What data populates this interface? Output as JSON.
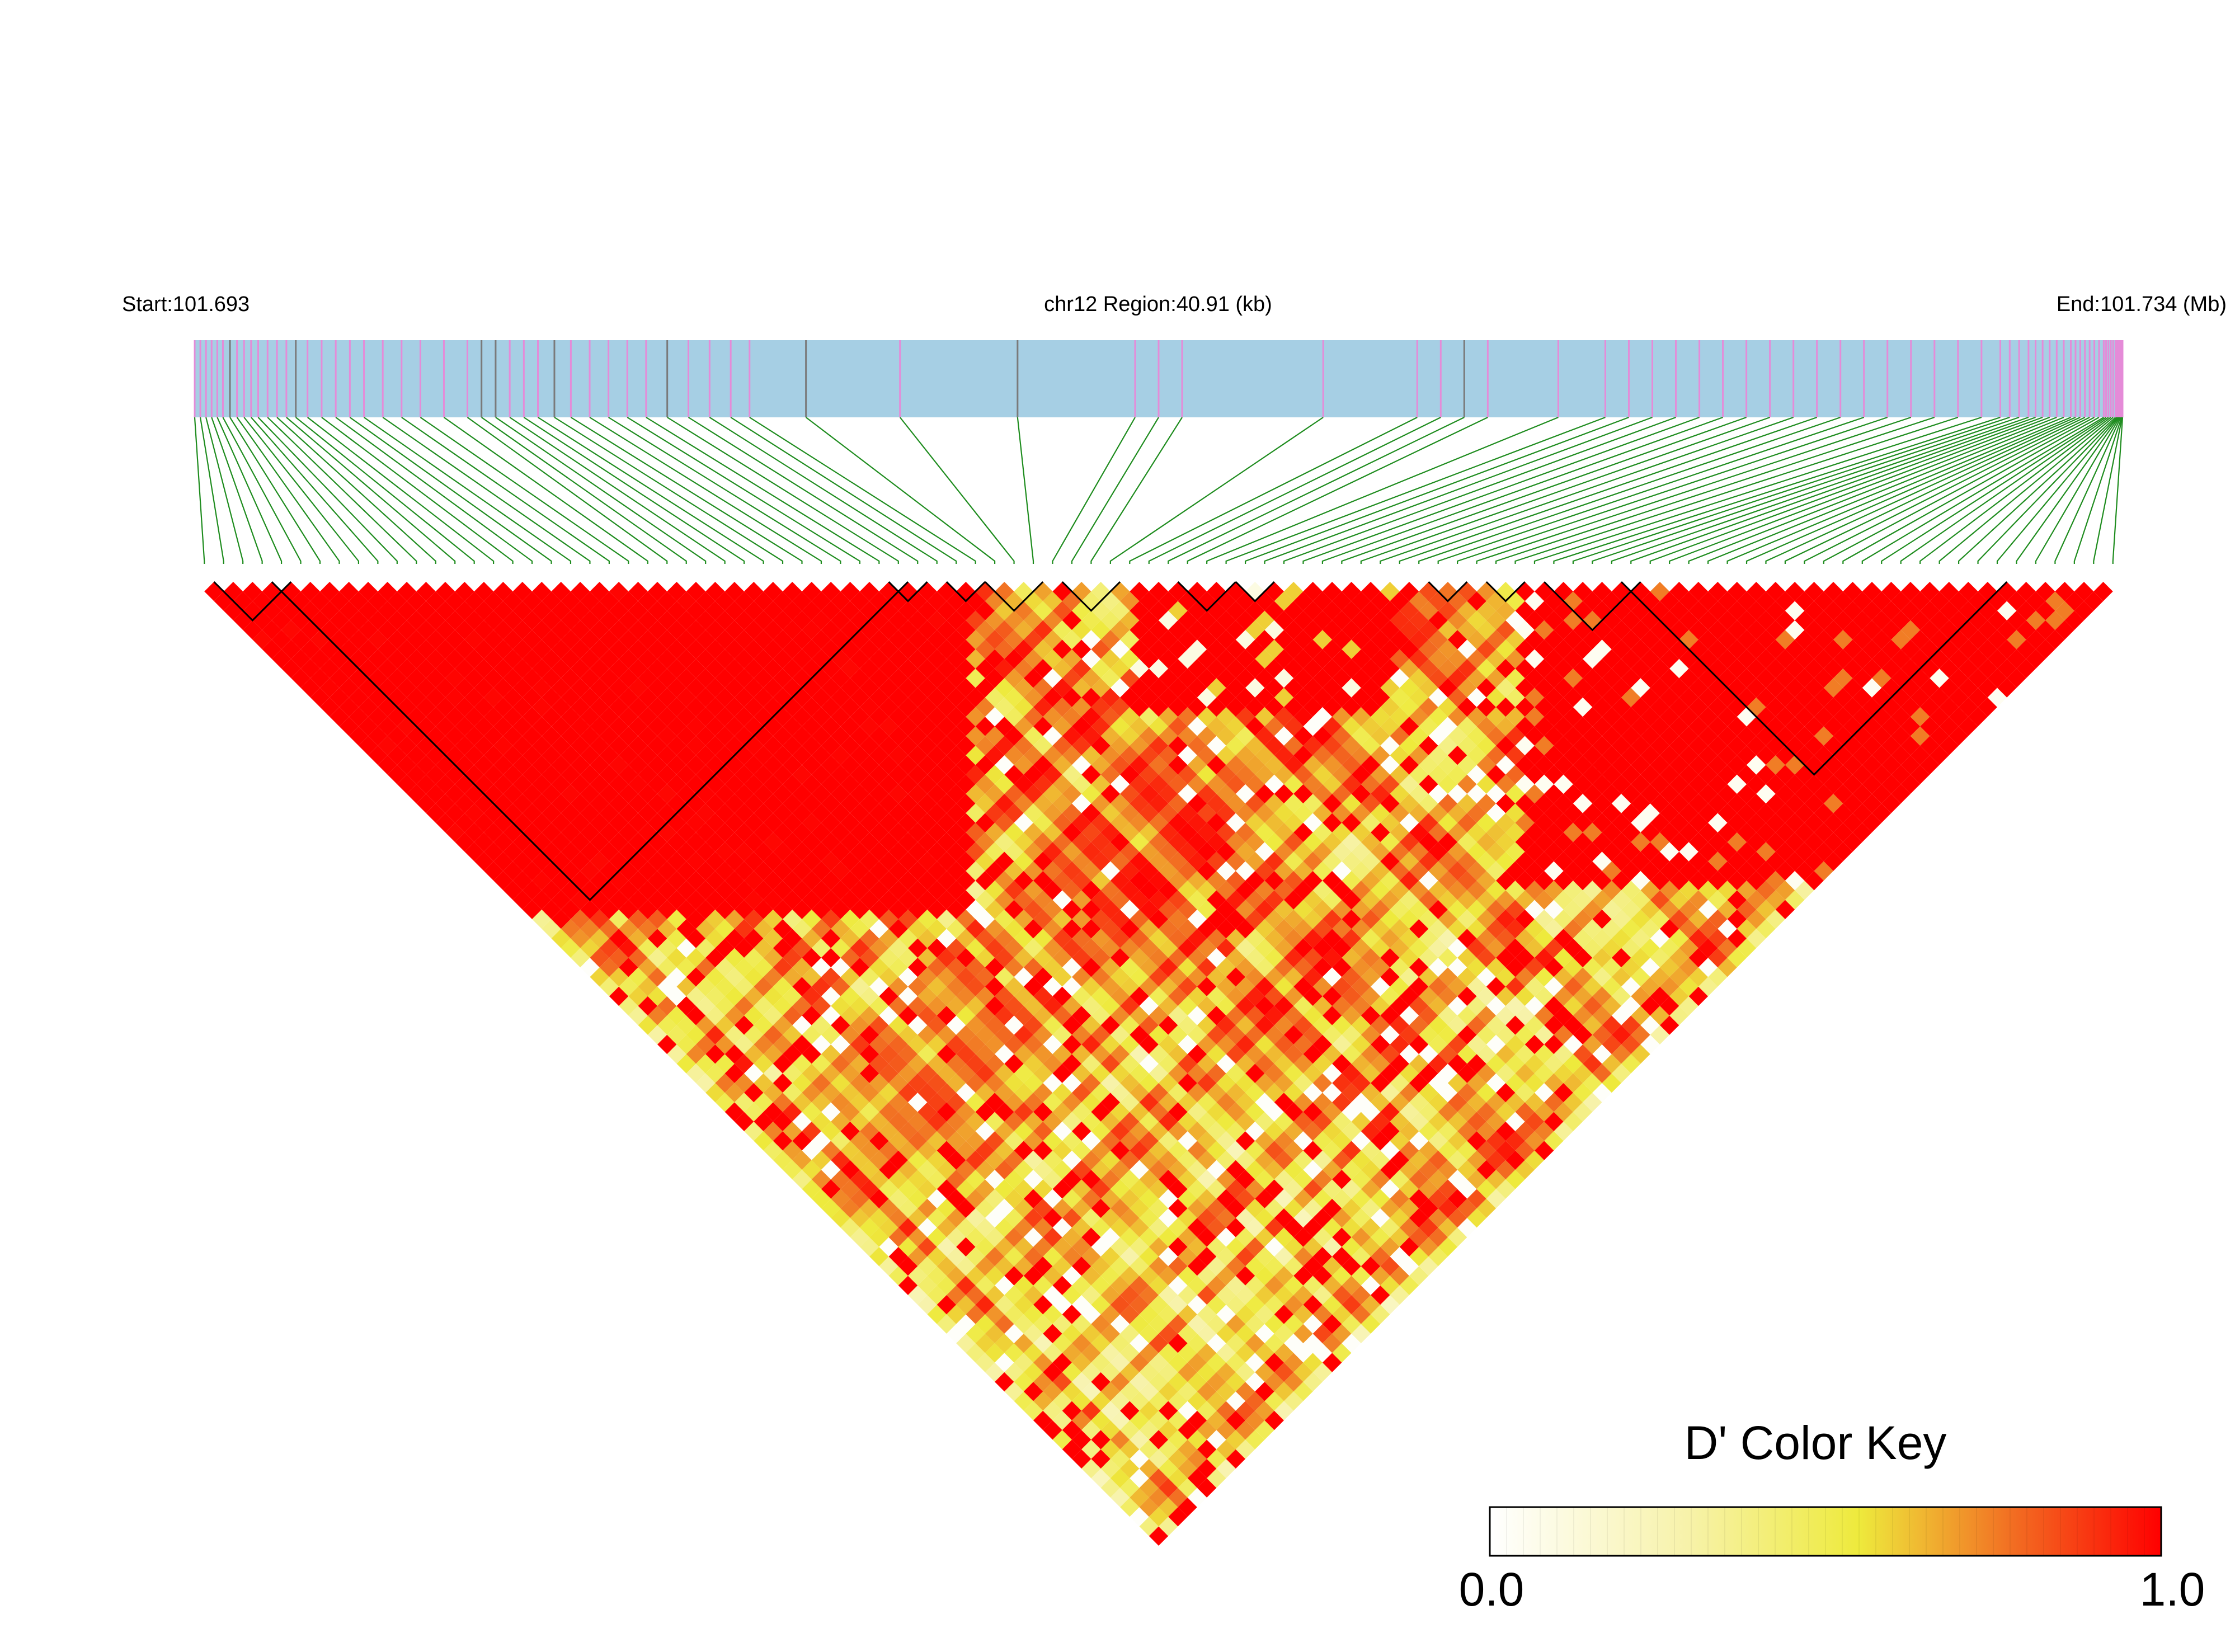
{
  "chart_data": {
    "type": "heatmap",
    "title": "",
    "subtitle": "",
    "labels": {
      "start": "Start:101.693",
      "region": "chr12 Region:40.91 (kb)",
      "end": "End:101.734 (Mb)"
    },
    "chromosome": "chr12",
    "start_mb": 101.693,
    "end_mb": 101.734,
    "region_kb": 40.91,
    "snp_count": 100,
    "snp_positions_mb": [
      101.693,
      101.69312,
      101.69324,
      101.69336,
      101.69348,
      101.6936,
      101.69375,
      101.6939,
      101.69405,
      101.6942,
      101.69435,
      101.69455,
      101.69475,
      101.69495,
      101.69515,
      101.6954,
      101.6957,
      101.696,
      101.6963,
      101.6966,
      101.697,
      101.6974,
      101.6978,
      101.6983,
      101.6988,
      101.6991,
      101.6994,
      101.6997,
      101.7,
      101.7003,
      101.70065,
      101.701,
      101.7014,
      101.7018,
      101.7022,
      101.7026,
      101.70305,
      101.7035,
      101.70395,
      101.7044,
      101.7048,
      101.706,
      101.708,
      101.7105,
      101.713,
      101.7135,
      101.714,
      101.717,
      101.719,
      101.7195,
      101.72,
      101.7205,
      101.722,
      101.723,
      101.7235,
      101.724,
      101.7245,
      101.725,
      101.7255,
      101.726,
      101.7265,
      101.727,
      101.7275,
      101.728,
      101.7285,
      101.729,
      101.7295,
      101.73,
      101.7305,
      101.731,
      101.7314,
      101.7316,
      101.7318,
      101.732,
      101.73215,
      101.7323,
      101.73245,
      101.7326,
      101.73275,
      101.7329,
      101.733,
      101.7331,
      101.7332,
      101.7333,
      101.7334,
      101.7335,
      101.7336,
      101.73365,
      101.7337,
      101.73375,
      101.7338,
      101.73385,
      101.73388,
      101.7339,
      101.73392,
      101.73394,
      101.73396,
      101.73398,
      101.73399,
      101.734
    ],
    "snp_kinds": [
      "pink",
      "pink",
      "pink",
      "pink",
      "pink",
      "pink",
      "gray",
      "pink",
      "pink",
      "pink",
      "pink",
      "pink",
      "pink",
      "pink",
      "gray",
      "pink",
      "pink",
      "pink",
      "pink",
      "pink",
      "pink",
      "pink",
      "pink",
      "pink",
      "pink",
      "gray",
      "gray",
      "pink",
      "pink",
      "pink",
      "gray",
      "pink",
      "pink",
      "pink",
      "pink",
      "pink",
      "gray",
      "pink",
      "pink",
      "pink",
      "pink",
      "gray",
      "pink",
      "gray",
      "pink",
      "pink",
      "pink",
      "pink",
      "pink",
      "pink",
      "gray",
      "pink",
      "pink",
      "pink",
      "pink",
      "pink",
      "pink",
      "pink",
      "pink",
      "pink",
      "pink",
      "pink",
      "pink",
      "pink",
      "pink",
      "pink",
      "pink",
      "pink",
      "pink",
      "pink",
      "pink",
      "pink",
      "pink",
      "pink",
      "pink",
      "pink",
      "pink",
      "pink",
      "pink",
      "pink",
      "pink",
      "pink",
      "pink",
      "pink",
      "pink",
      "pink",
      "pink",
      "pink",
      "pink",
      "pink",
      "pink",
      "pink",
      "pink",
      "pink",
      "pink",
      "pink",
      "pink",
      "pink",
      "pink",
      "pink"
    ],
    "ld_blocks": [
      {
        "from": 1,
        "to": 4
      },
      {
        "from": 4,
        "to": 36
      },
      {
        "from": 36,
        "to": 37
      },
      {
        "from": 39,
        "to": 40
      },
      {
        "from": 41,
        "to": 43
      },
      {
        "from": 45,
        "to": 47
      },
      {
        "from": 51,
        "to": 53
      },
      {
        "from": 54,
        "to": 55
      },
      {
        "from": 64,
        "to": 65
      },
      {
        "from": 67,
        "to": 68
      },
      {
        "from": 70,
        "to": 74
      },
      {
        "from": 74,
        "to": 93
      }
    ],
    "legend": {
      "title": "D' Color Key",
      "min_label": "0.0",
      "max_label": "1.0",
      "min": 0.0,
      "max": 1.0,
      "placement": "bottom-right",
      "colors": [
        "#ffffff",
        "#eeea3c",
        "#f26d22",
        "#ff0000"
      ]
    },
    "colors": {
      "track": "#a6cfe4",
      "snp_pink": "#e58bd8",
      "snp_gray": "#7a7a7a",
      "connector": "#1e8c1e",
      "high": "#ff0000"
    }
  }
}
